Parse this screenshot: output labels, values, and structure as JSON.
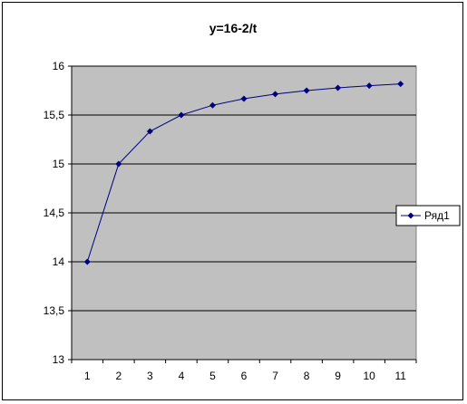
{
  "chart_data": {
    "type": "line",
    "title": "y=16-2/t",
    "x": [
      1,
      2,
      3,
      4,
      5,
      6,
      7,
      8,
      9,
      10,
      11
    ],
    "categories": [
      "1",
      "2",
      "3",
      "4",
      "5",
      "6",
      "7",
      "8",
      "9",
      "10",
      "11"
    ],
    "series": [
      {
        "name": "Ряд1",
        "values": [
          14,
          15,
          15.333,
          15.5,
          15.6,
          15.667,
          15.714,
          15.75,
          15.778,
          15.8,
          15.818
        ]
      }
    ],
    "ylim": [
      13,
      16
    ],
    "yticks": [
      "13",
      "13,5",
      "14",
      "14,5",
      "15",
      "15,5",
      "16"
    ],
    "grid": true,
    "legend_position": "right",
    "colors": {
      "plot_background": "#c0c0c0",
      "series_line": "#000080",
      "grid": "#000000"
    }
  }
}
